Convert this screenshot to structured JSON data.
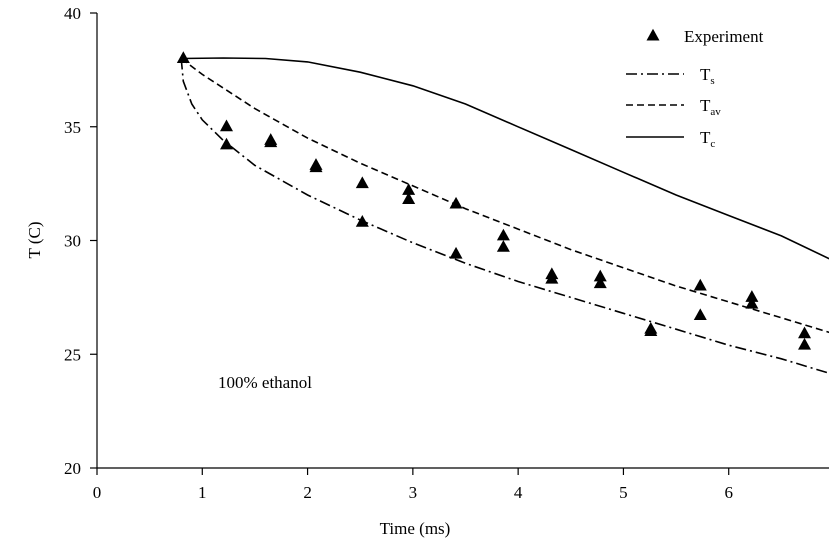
{
  "chart_data": {
    "type": "line",
    "xlabel": "Time (ms)",
    "ylabel": "T (C)",
    "xlim": [
      0,
      7
    ],
    "ylim": [
      20,
      40
    ],
    "xticks": [
      "0",
      "1",
      "2",
      "3",
      "4",
      "5",
      "6",
      "7"
    ],
    "yticks": [
      "20",
      "25",
      "30",
      "35",
      "40"
    ],
    "grid": false,
    "legend_position": "top-right",
    "annotation": "100% ethanol",
    "series": [
      {
        "name": "Experiment",
        "kind": "scatter",
        "marker": "triangle",
        "points": [
          [
            0.82,
            38.0
          ],
          [
            1.23,
            35.0
          ],
          [
            1.23,
            34.2
          ],
          [
            1.65,
            34.4
          ],
          [
            1.65,
            34.3
          ],
          [
            2.08,
            33.3
          ],
          [
            2.08,
            33.2
          ],
          [
            2.52,
            32.5
          ],
          [
            2.52,
            30.8
          ],
          [
            2.96,
            32.2
          ],
          [
            2.96,
            31.8
          ],
          [
            3.41,
            31.6
          ],
          [
            3.41,
            29.4
          ],
          [
            3.86,
            30.2
          ],
          [
            3.86,
            29.7
          ],
          [
            4.32,
            28.5
          ],
          [
            4.32,
            28.3
          ],
          [
            4.78,
            28.4
          ],
          [
            4.78,
            28.1
          ],
          [
            5.26,
            26.1
          ],
          [
            5.26,
            26.0
          ],
          [
            5.73,
            28.0
          ],
          [
            5.73,
            26.7
          ],
          [
            6.22,
            27.5
          ],
          [
            6.22,
            27.2
          ],
          [
            6.72,
            25.9
          ],
          [
            6.72,
            25.4
          ]
        ]
      },
      {
        "name": "T",
        "name_sub": "s",
        "kind": "line",
        "dash": "dashdot",
        "points": [
          [
            0.8,
            38.0
          ],
          [
            0.82,
            37.0
          ],
          [
            0.9,
            36.0
          ],
          [
            1.0,
            35.3
          ],
          [
            1.2,
            34.4
          ],
          [
            1.5,
            33.3
          ],
          [
            2.0,
            32.0
          ],
          [
            2.5,
            30.9
          ],
          [
            3.0,
            29.9
          ],
          [
            3.5,
            29.0
          ],
          [
            4.0,
            28.2
          ],
          [
            4.5,
            27.5
          ],
          [
            5.0,
            26.8
          ],
          [
            5.5,
            26.1
          ],
          [
            6.0,
            25.4
          ],
          [
            6.5,
            24.8
          ],
          [
            7.0,
            24.1
          ]
        ]
      },
      {
        "name": "T",
        "name_sub": "av",
        "kind": "line",
        "dash": "dashed",
        "points": [
          [
            0.8,
            38.0
          ],
          [
            1.0,
            37.3
          ],
          [
            1.5,
            35.8
          ],
          [
            2.0,
            34.5
          ],
          [
            2.5,
            33.4
          ],
          [
            3.0,
            32.4
          ],
          [
            3.5,
            31.4
          ],
          [
            4.0,
            30.5
          ],
          [
            4.5,
            29.6
          ],
          [
            5.0,
            28.8
          ],
          [
            5.5,
            28.0
          ],
          [
            6.0,
            27.3
          ],
          [
            6.5,
            26.6
          ],
          [
            7.0,
            25.9
          ]
        ]
      },
      {
        "name": "T",
        "name_sub": "c",
        "kind": "line",
        "dash": "solid",
        "points": [
          [
            0.8,
            38.0
          ],
          [
            1.2,
            38.02
          ],
          [
            1.6,
            38.0
          ],
          [
            2.0,
            37.85
          ],
          [
            2.5,
            37.4
          ],
          [
            3.0,
            36.8
          ],
          [
            3.5,
            36.0
          ],
          [
            4.0,
            35.0
          ],
          [
            4.5,
            34.0
          ],
          [
            5.0,
            33.0
          ],
          [
            5.5,
            32.0
          ],
          [
            6.0,
            31.1
          ],
          [
            6.5,
            30.2
          ],
          [
            7.0,
            29.1
          ]
        ]
      }
    ]
  }
}
